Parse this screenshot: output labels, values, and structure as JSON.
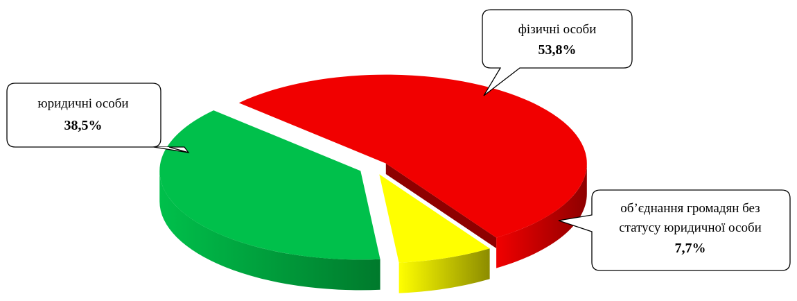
{
  "chart_data": {
    "type": "pie",
    "style": "3d-exploded",
    "slices": [
      {
        "label": "фізичні особи",
        "value": 53.8,
        "value_label": "53,8%",
        "color": "#f10000",
        "side_color": "#8e0000"
      },
      {
        "label": "юридичні особи",
        "value": 38.5,
        "value_label": "38,5%",
        "color": "#00c04b",
        "side_color": "#007a2c"
      },
      {
        "label_lines": [
          "об’єднання громадян без",
          "статусу юридичної особи"
        ],
        "value": 7.7,
        "value_label": "7,7%",
        "color": "#ffff00",
        "side_color": "#8c8c00"
      }
    ]
  }
}
